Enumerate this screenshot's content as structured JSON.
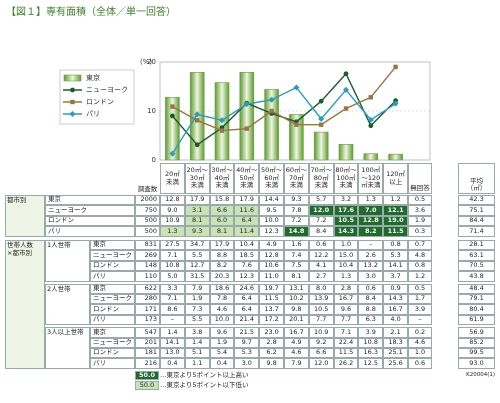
{
  "title": "【図１】専有面積（全体／単一回答）",
  "chart_data": {
    "type": "bar",
    "unit_label": "(%)",
    "categories": [
      "20㎡\n未満",
      "20㎡～\n30㎡\n未満",
      "30㎡～\n40㎡\n未満",
      "40㎡～\n50㎡\n未満",
      "50㎡～\n60㎡\n未満",
      "60㎡～\n70㎡\n未満",
      "70㎡～\n80㎡\n未満",
      "80㎡～\n100㎡\n未満",
      "100㎡\n～120\n㎡未満",
      "120㎡\n以上"
    ],
    "ylim": [
      0,
      20
    ],
    "yticks": [
      0,
      10,
      20
    ],
    "series": [
      {
        "name": "東京",
        "type": "bar",
        "color": "#6aa23c",
        "values": [
          12.8,
          17.9,
          15.8,
          17.9,
          14.4,
          9.3,
          5.7,
          3.2,
          1.3,
          1.2
        ],
        "value_labels": [
          "12.8",
          "17.9",
          "15.8",
          "17.9",
          "14.4",
          "9.3",
          "5.7",
          "3.2",
          "1.3",
          "1.2"
        ]
      },
      {
        "name": "ニューヨーク",
        "type": "line",
        "marker": "circle",
        "color": "#1d5a30",
        "values": [
          9.0,
          3.1,
          6.6,
          11.6,
          9.5,
          7.8,
          12.0,
          17.6,
          7.0,
          12.1
        ],
        "value_labels": [
          "9.0",
          "3.1",
          "6.6",
          "11.6",
          "9.5",
          "7.8",
          "12.0",
          "17.6",
          "7.0",
          "12.1"
        ]
      },
      {
        "name": "ロンドン",
        "type": "line",
        "marker": "square",
        "color": "#9a7444",
        "values": [
          10.9,
          8.1,
          6.0,
          6.4,
          10.0,
          7.2,
          7.2,
          10.5,
          12.8,
          19.0
        ],
        "value_labels": [
          "10.9",
          "8.1",
          "6.0",
          "6.4",
          "10.0",
          "7.2",
          "7.2",
          "10.5",
          "12.8",
          "19.0"
        ]
      },
      {
        "name": "パリ",
        "type": "line",
        "marker": "diamond",
        "color": "#2a9cbc",
        "values": [
          1.3,
          9.3,
          8.1,
          11.4,
          12.3,
          14.8,
          8.4,
          14.3,
          8.2,
          11.5
        ],
        "value_labels": [
          "1.3",
          "9.3",
          "8.1",
          "11.4",
          "12.3",
          "14.8",
          "8.4",
          "14.3",
          "8.2",
          "11.5"
        ]
      }
    ]
  },
  "table": {
    "n_header": "調査数",
    "no_answer_header": "無回答",
    "average_header": "平均\n（㎡）",
    "city_section": {
      "label": "都市別",
      "rows": [
        {
          "n": "2000",
          "no_answer": "0.5",
          "average": "42.3"
        },
        {
          "n": "750",
          "no_answer": "3.6",
          "average": "75.1"
        },
        {
          "n": "500",
          "no_answer": "1.9",
          "average": "84.4"
        },
        {
          "n": "500",
          "no_answer": "0.3",
          "average": "71.4"
        }
      ]
    },
    "household_section": {
      "label": "世帯人数\n×都市別",
      "groups": [
        {
          "label": "1人世帯",
          "rows": [
            {
              "n": "831",
              "values": [
                "27.5",
                "34.7",
                "17.9",
                "10.4",
                "4.9",
                "1.6",
                "0.6",
                "1.0",
                "–",
                "0.8"
              ],
              "no_answer": "0.7",
              "average": "28.1"
            },
            {
              "n": "269",
              "values": [
                "7.1",
                "5.5",
                "8.8",
                "18.5",
                "12.8",
                "7.4",
                "12.2",
                "15.0",
                "2.6",
                "5.3"
              ],
              "no_answer": "4.8",
              "average": "63.1"
            },
            {
              "n": "148",
              "values": [
                "10.8",
                "12.7",
                "8.2",
                "7.6",
                "10.6",
                "7.5",
                "4.1",
                "10.4",
                "13.2",
                "14.1"
              ],
              "no_answer": "0.8",
              "average": "70.5"
            },
            {
              "n": "110",
              "values": [
                "5.0",
                "31.5",
                "20.3",
                "12.3",
                "11.0",
                "8.1",
                "2.7",
                "1.3",
                "3.0",
                "3.7"
              ],
              "no_answer": "1.2",
              "average": "43.8"
            }
          ]
        },
        {
          "label": "2人世帯",
          "rows": [
            {
              "n": "622",
              "values": [
                "3.3",
                "7.9",
                "18.6",
                "24.6",
                "19.7",
                "13.1",
                "8.0",
                "2.8",
                "0.6",
                "0.9"
              ],
              "no_answer": "0.5",
              "average": "48.4"
            },
            {
              "n": "280",
              "values": [
                "7.1",
                "1.9",
                "7.8",
                "6.4",
                "11.5",
                "10.2",
                "13.9",
                "16.7",
                "8.4",
                "14.3"
              ],
              "no_answer": "1.7",
              "average": "79.1"
            },
            {
              "n": "171",
              "values": [
                "8.6",
                "7.3",
                "4.6",
                "6.4",
                "13.7",
                "9.8",
                "10.5",
                "9.6",
                "8.8",
                "16.7"
              ],
              "no_answer": "3.9",
              "average": "80.4"
            },
            {
              "n": "173",
              "values": [
                "–",
                "5.5",
                "10.0",
                "21.4",
                "17.2",
                "20.1",
                "7.7",
                "7.7",
                "6.3",
                "4.0"
              ],
              "no_answer": "–",
              "average": "61.9"
            }
          ]
        },
        {
          "label": "3人以上世帯",
          "rows": [
            {
              "n": "547",
              "values": [
                "1.4",
                "3.8",
                "9.6",
                "21.5",
                "23.0",
                "16.7",
                "10.9",
                "7.1",
                "3.9",
                "2.1"
              ],
              "no_answer": "0.2",
              "average": "56.9"
            },
            {
              "n": "201",
              "values": [
                "14.1",
                "1.4",
                "1.9",
                "9.7",
                "2.8",
                "4.9",
                "9.2",
                "22.4",
                "10.8",
                "18.3"
              ],
              "no_answer": "4.6",
              "average": "85.2"
            },
            {
              "n": "181",
              "values": [
                "13.0",
                "5.1",
                "5.4",
                "5.3",
                "6.2",
                "4.6",
                "6.6",
                "11.5",
                "16.3",
                "25.1"
              ],
              "no_answer": "1.0",
              "average": "99.5"
            },
            {
              "n": "216",
              "values": [
                "0.4",
                "1.1",
                "0.4",
                "3.0",
                "9.8",
                "7.9",
                "12.0",
                "26.2",
                "12.5",
                "25.6"
              ],
              "no_answer": "0.6",
              "average": "93.0"
            }
          ]
        }
      ]
    }
  },
  "legend_notes": [
    {
      "sample": "50.0",
      "text": "…東京より5ポイント以上高い"
    },
    {
      "sample": "50.0",
      "text": "…東京より5ポイント以下低い"
    }
  ],
  "code": "K20004(1)"
}
